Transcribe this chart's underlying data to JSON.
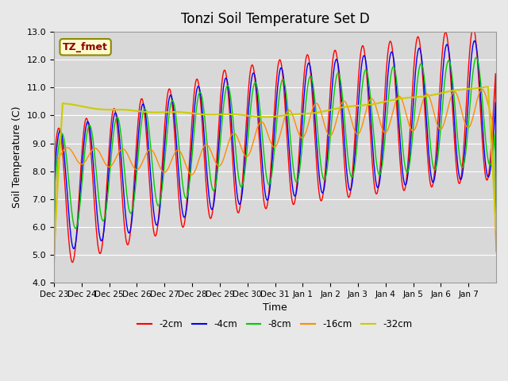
{
  "title": "Tonzi Soil Temperature Set D",
  "xlabel": "Time",
  "ylabel": "Soil Temperature (C)",
  "ylim": [
    4.0,
    13.0
  ],
  "yticks": [
    4.0,
    5.0,
    6.0,
    7.0,
    8.0,
    9.0,
    10.0,
    11.0,
    12.0,
    13.0
  ],
  "xtick_labels": [
    "Dec 23",
    "Dec 24",
    "Dec 25",
    "Dec 26",
    "Dec 27",
    "Dec 28",
    "Dec 29",
    "Dec 30",
    "Dec 31",
    "Jan 1",
    "Jan 2",
    "Jan 3",
    "Jan 4",
    "Jan 5",
    "Jan 6",
    "Jan 7"
  ],
  "legend_label": "TZ_fmet",
  "series_labels": [
    "-2cm",
    "-4cm",
    "-8cm",
    "-16cm",
    "-32cm"
  ],
  "colors": [
    "#FF0000",
    "#0000FF",
    "#00CC00",
    "#FF8C00",
    "#CCCC00"
  ],
  "background_color": "#E8E8E8",
  "plot_bg_color": "#D8D8D8",
  "n_days": 16,
  "points_per_day": 48
}
